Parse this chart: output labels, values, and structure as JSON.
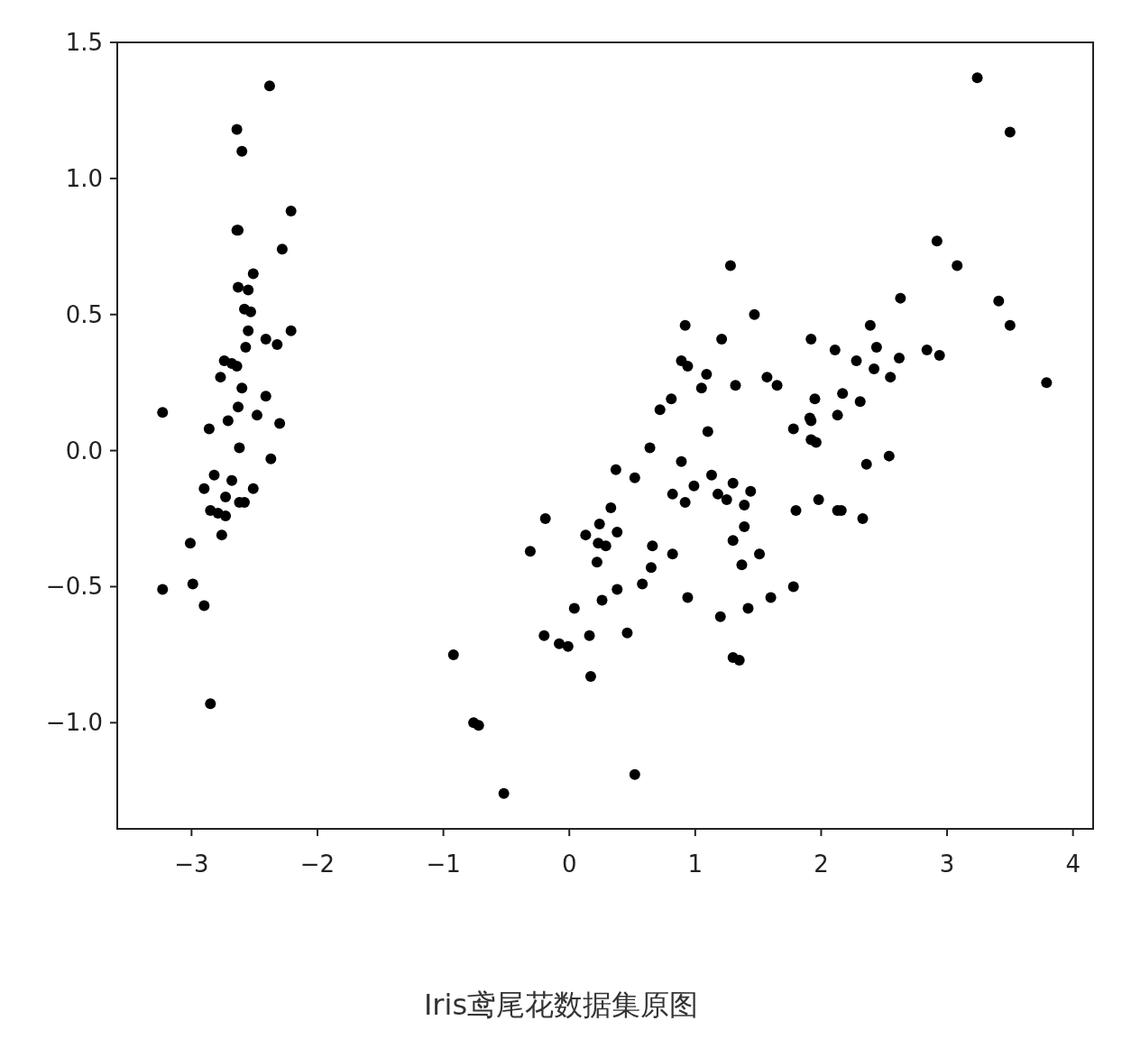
{
  "chart_data": {
    "type": "scatter",
    "color": "#000000",
    "marker": "circle",
    "grid": false,
    "xlim": [
      -3.59,
      4.16
    ],
    "ylim": [
      -1.39,
      1.5
    ],
    "xticks": [
      {
        "value": -3,
        "label": "−3"
      },
      {
        "value": -2,
        "label": "−2"
      },
      {
        "value": -1,
        "label": "−1"
      },
      0,
      1,
      2,
      3,
      4
    ],
    "yticks": [
      {
        "value": -1,
        "label": "−1.0"
      },
      {
        "value": -0.5,
        "label": "−0.5"
      },
      {
        "value": 0,
        "label": "0.0"
      },
      0.5,
      {
        "value": 1,
        "label": "1.0"
      },
      1.5
    ],
    "annotations": [
      "Iris鸢尾花数据集原图"
    ],
    "x": [
      -2.38,
      -2.64,
      -2.6,
      -2.21,
      -2.64,
      -2.63,
      -2.28,
      -2.51,
      -2.63,
      -2.55,
      -2.58,
      -2.53,
      -2.55,
      -2.41,
      -2.32,
      -2.21,
      -2.57,
      -2.74,
      -2.68,
      -2.64,
      -2.77,
      -2.6,
      -2.41,
      -2.63,
      -2.48,
      -2.71,
      -2.3,
      -3.23,
      -2.86,
      -2.62,
      -2.37,
      -2.82,
      -2.68,
      -2.9,
      -2.51,
      -2.73,
      -2.62,
      -2.58,
      -2.85,
      -2.79,
      -2.73,
      -2.76,
      -3.01,
      -3.23,
      -2.99,
      -2.9,
      -2.85,
      3.24,
      3.5,
      1.28,
      2.92,
      3.08,
      2.63,
      3.41,
      3.5,
      3.79,
      1.47,
      0.92,
      1.21,
      1.92,
      2.39,
      2.11,
      2.44,
      2.84,
      2.94,
      0.89,
      0.94,
      2.28,
      2.62,
      2.42,
      1.09,
      2.55,
      1.57,
      1.65,
      1.32,
      1.05,
      0.81,
      1.95,
      2.17,
      2.31,
      0.72,
      2.13,
      1.91,
      1.92,
      1.78,
      1.1,
      1.92,
      1.96,
      0.64,
      2.54,
      2.36,
      0.37,
      0.89,
      1.13,
      0.52,
      0.99,
      1.3,
      1.44,
      0.82,
      1.18,
      1.25,
      0.92,
      1.98,
      1.39,
      0.33,
      2.13,
      2.16,
      1.8,
      -0.19,
      2.33,
      0.24,
      1.39,
      0.38,
      0.13,
      1.3,
      0.23,
      0.29,
      -0.31,
      0.66,
      1.51,
      0.82,
      0.22,
      0.65,
      1.37,
      0.38,
      1.78,
      0.58,
      0.26,
      0.94,
      1.6,
      0.04,
      1.42,
      -0.2,
      0.16,
      0.46,
      1.2,
      -0.08,
      -0.01,
      1.3,
      1.35,
      -0.92,
      0.17,
      -0.76,
      -0.72,
      0.52,
      -0.52
    ],
    "values": [
      1.34,
      1.18,
      1.1,
      0.88,
      0.81,
      0.81,
      0.74,
      0.65,
      0.6,
      0.59,
      0.52,
      0.51,
      0.44,
      0.41,
      0.39,
      0.44,
      0.38,
      0.33,
      0.32,
      0.31,
      0.27,
      0.23,
      0.2,
      0.16,
      0.13,
      0.11,
      0.1,
      0.14,
      0.08,
      0.01,
      -0.03,
      -0.09,
      -0.11,
      -0.14,
      -0.14,
      -0.17,
      -0.19,
      -0.19,
      -0.22,
      -0.23,
      -0.24,
      -0.31,
      -0.34,
      -0.51,
      -0.49,
      -0.57,
      -0.93,
      1.37,
      1.17,
      0.68,
      0.77,
      0.68,
      0.56,
      0.55,
      0.46,
      0.25,
      0.5,
      0.46,
      0.41,
      0.41,
      0.46,
      0.37,
      0.38,
      0.37,
      0.35,
      0.33,
      0.31,
      0.33,
      0.34,
      0.3,
      0.28,
      0.27,
      0.27,
      0.24,
      0.24,
      0.23,
      0.19,
      0.19,
      0.21,
      0.18,
      0.15,
      0.13,
      0.12,
      0.11,
      0.08,
      0.07,
      0.04,
      0.03,
      0.01,
      -0.02,
      -0.05,
      -0.07,
      -0.04,
      -0.09,
      -0.1,
      -0.13,
      -0.12,
      -0.15,
      -0.16,
      -0.16,
      -0.18,
      -0.19,
      -0.18,
      -0.2,
      -0.21,
      -0.22,
      -0.22,
      -0.22,
      -0.25,
      -0.25,
      -0.27,
      -0.28,
      -0.3,
      -0.31,
      -0.33,
      -0.34,
      -0.35,
      -0.37,
      -0.35,
      -0.38,
      -0.38,
      -0.41,
      -0.43,
      -0.42,
      -0.51,
      -0.5,
      -0.49,
      -0.55,
      -0.54,
      -0.54,
      -0.58,
      -0.58,
      -0.68,
      -0.68,
      -0.67,
      -0.61,
      -0.71,
      -0.72,
      -0.76,
      -0.77,
      -0.75,
      -0.83,
      -1.0,
      -1.01,
      -1.19,
      -1.26
    ]
  }
}
